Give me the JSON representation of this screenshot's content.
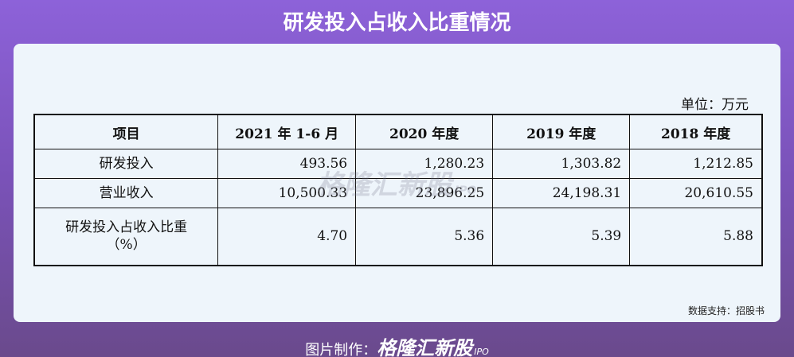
{
  "header": {
    "title": "研发投入占收入比重情况"
  },
  "unit": "单位：万元",
  "table": {
    "columns": [
      "项目",
      "2021 年 1-6 月",
      "2020 年度",
      "2019 年度",
      "2018 年度"
    ],
    "rows": [
      [
        [
          "研发投入"
        ],
        "493.56",
        "1,280.23",
        "1,303.82",
        "1,212.85"
      ],
      [
        [
          "营业收入"
        ],
        "10,500.33",
        "23,896.25",
        "24,198.31",
        "20,610.55"
      ],
      [
        [
          "研发投入占收入比重",
          "（%）"
        ],
        "4.70",
        "5.36",
        "5.39",
        "5.88"
      ]
    ]
  },
  "watermark": {
    "brand": "格隆汇新股",
    "tag": "IPO"
  },
  "source": "数据支持：招股书",
  "footer": {
    "label": "图片制作：",
    "brand": "格隆汇新股",
    "tag": "IPO"
  }
}
